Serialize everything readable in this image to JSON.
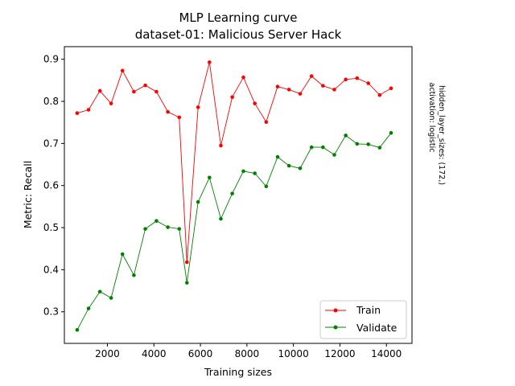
{
  "chart_data": {
    "type": "line",
    "title_line1": "MLP Learning curve",
    "title_line2": "dataset-01: Malicious Server Hack",
    "xlabel": "Training sizes",
    "ylabel": "Metric: Recall",
    "side_note_line1": "hidden_layer_sizes: (172,)",
    "side_note_line2": "activation: logistic",
    "xlim": [
      150,
      15100
    ],
    "ylim": [
      0.225,
      0.93
    ],
    "xticks": [
      2000,
      4000,
      6000,
      8000,
      10000,
      12000,
      14000
    ],
    "yticks": [
      0.3,
      0.4,
      0.5,
      0.6,
      0.7,
      0.8,
      0.9
    ],
    "legend_position": "lower-right",
    "x": [
      700,
      1190,
      1680,
      2160,
      2650,
      3140,
      3630,
      4110,
      4600,
      5090,
      5420,
      5900,
      6390,
      6880,
      7370,
      7850,
      8340,
      8830,
      9320,
      9810,
      10290,
      10780,
      11270,
      11760,
      12250,
      12740,
      13220,
      13710,
      14200
    ],
    "series": [
      {
        "name": "Train",
        "color": "#ff0000",
        "values": [
          0.772,
          0.78,
          0.825,
          0.795,
          0.873,
          0.823,
          0.838,
          0.823,
          0.775,
          0.762,
          0.418,
          0.786,
          0.893,
          0.695,
          0.81,
          0.857,
          0.795,
          0.751,
          0.835,
          0.828,
          0.818,
          0.86,
          0.837,
          0.828,
          0.852,
          0.855,
          0.843,
          0.815,
          0.831
        ]
      },
      {
        "name": "Validate",
        "color": "#008000",
        "values": [
          0.257,
          0.308,
          0.348,
          0.333,
          0.437,
          0.387,
          0.497,
          0.516,
          0.501,
          0.497,
          0.369,
          0.561,
          0.619,
          0.521,
          0.581,
          0.634,
          0.629,
          0.598,
          0.668,
          0.647,
          0.641,
          0.691,
          0.691,
          0.673,
          0.719,
          0.699,
          0.698,
          0.69,
          0.725
        ]
      }
    ]
  }
}
